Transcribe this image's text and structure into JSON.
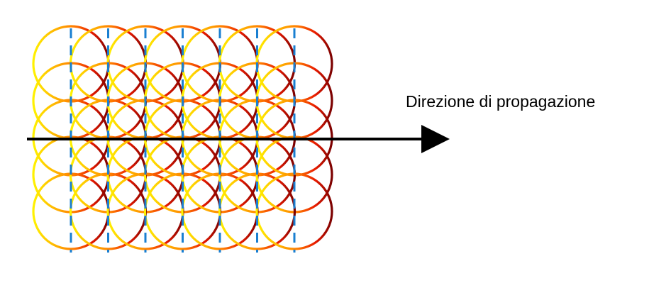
{
  "label": "Direzione di propagazione",
  "grid": {
    "columns": 7,
    "rows": 5
  },
  "colors": {
    "gradient": [
      "#fff200",
      "#ffb300",
      "#ff7a00",
      "#e81a00",
      "#7a0000"
    ],
    "dashed_lines": "#1a7fd1",
    "arrow": "#000000"
  }
}
